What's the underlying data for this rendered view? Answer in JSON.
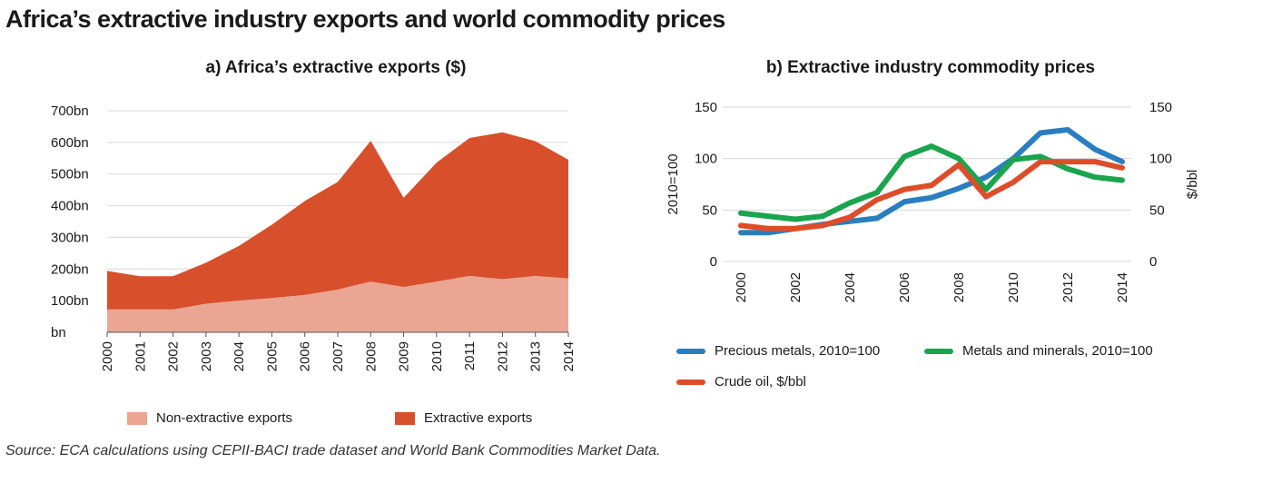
{
  "title": "Africa’s extractive industry exports and world commodity prices",
  "source": "Source: ECA calculations using CEPII-BACI trade dataset and World Bank Commodities Market Data.",
  "colors": {
    "non_extractive": "#eba593",
    "extractive": "#d84f2c",
    "precious": "#2a7ec0",
    "metals": "#1aa44d",
    "oil": "#de4d2a",
    "grid": "#d8d8d8"
  },
  "chart_data": [
    {
      "type": "area",
      "title": "a) Africa’s extractive exports ($)",
      "categories": [
        "2000",
        "2001",
        "2002",
        "2003",
        "2004",
        "2005",
        "2006",
        "2007",
        "2008",
        "2009",
        "2010",
        "2011",
        "2012",
        "2013",
        "2014"
      ],
      "stacked": true,
      "series": [
        {
          "name": "Non-extractive exports",
          "values": [
            72,
            72,
            72,
            90,
            100,
            108,
            118,
            135,
            160,
            143,
            160,
            178,
            168,
            178,
            170
          ]
        },
        {
          "name": "Extractive exports",
          "values": [
            122,
            105,
            105,
            130,
            173,
            232,
            297,
            340,
            445,
            282,
            376,
            436,
            464,
            426,
            375
          ]
        }
      ],
      "ylim": [
        0,
        700
      ],
      "yticks": [
        0,
        100,
        200,
        300,
        400,
        500,
        600,
        700
      ],
      "ytick_labels": [
        "bn",
        "100bn",
        "200bn",
        "300bn",
        "400bn",
        "500bn",
        "600bn",
        "700bn"
      ],
      "grid": true,
      "legend": "bottom"
    },
    {
      "type": "line",
      "title": "b) Extractive industry commodity prices",
      "x": [
        2000,
        2001,
        2002,
        2003,
        2004,
        2005,
        2006,
        2007,
        2008,
        2009,
        2010,
        2011,
        2012,
        2013,
        2014
      ],
      "xticks": [
        "2000",
        "2002",
        "2004",
        "2006",
        "2008",
        "2010",
        "2012",
        "2014"
      ],
      "ylabel": "2010=100",
      "y2label": "$/bbl",
      "ylim": [
        0,
        150
      ],
      "y2lim": [
        0,
        150
      ],
      "yticks": [
        "0",
        "50",
        "100",
        "150"
      ],
      "y2ticks": [
        "0",
        "50",
        "100",
        "150"
      ],
      "series": [
        {
          "name": "Precious metals, 2010=100",
          "axis": "left",
          "values": [
            28,
            28,
            32,
            36,
            39,
            42,
            58,
            62,
            71,
            82,
            100,
            125,
            128,
            109,
            97
          ]
        },
        {
          "name": "Metals and minerals, 2010=100",
          "axis": "left",
          "values": [
            47,
            44,
            41,
            44,
            57,
            67,
            102,
            112,
            100,
            70,
            99,
            102,
            90,
            82,
            79
          ]
        },
        {
          "name": "Crude oil, $/bbl",
          "axis": "right",
          "values": [
            35,
            32,
            32,
            35,
            43,
            60,
            70,
            74,
            94,
            63,
            77,
            97,
            97,
            97,
            91
          ]
        }
      ],
      "grid": true,
      "legend": "bottom"
    }
  ]
}
